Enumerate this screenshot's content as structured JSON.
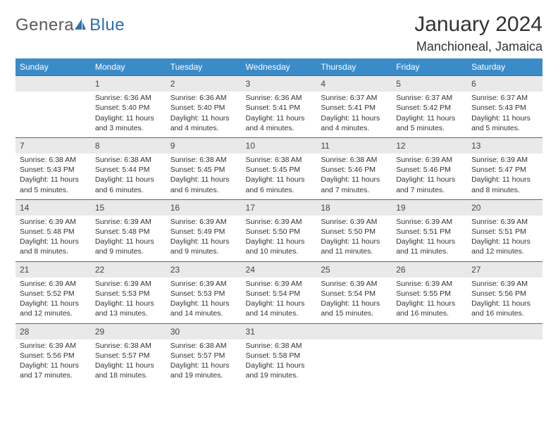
{
  "logo": {
    "textA": "Genera",
    "textB": "Blue"
  },
  "title": "January 2024",
  "location": "Manchioneal, Jamaica",
  "colors": {
    "headerBg": "#3b8bc9",
    "headerText": "#ffffff",
    "dayNumBg": "#e9e9e9",
    "rowBorder": "#2f6fb0",
    "bodyText": "#333333",
    "logoGray": "#5a5a5a",
    "logoBlue": "#2f6fb0"
  },
  "dayNames": [
    "Sunday",
    "Monday",
    "Tuesday",
    "Wednesday",
    "Thursday",
    "Friday",
    "Saturday"
  ],
  "weeks": [
    [
      null,
      {
        "n": "1",
        "sr": "Sunrise: 6:36 AM",
        "ss": "Sunset: 5:40 PM",
        "d1": "Daylight: 11 hours",
        "d2": "and 3 minutes."
      },
      {
        "n": "2",
        "sr": "Sunrise: 6:36 AM",
        "ss": "Sunset: 5:40 PM",
        "d1": "Daylight: 11 hours",
        "d2": "and 4 minutes."
      },
      {
        "n": "3",
        "sr": "Sunrise: 6:36 AM",
        "ss": "Sunset: 5:41 PM",
        "d1": "Daylight: 11 hours",
        "d2": "and 4 minutes."
      },
      {
        "n": "4",
        "sr": "Sunrise: 6:37 AM",
        "ss": "Sunset: 5:41 PM",
        "d1": "Daylight: 11 hours",
        "d2": "and 4 minutes."
      },
      {
        "n": "5",
        "sr": "Sunrise: 6:37 AM",
        "ss": "Sunset: 5:42 PM",
        "d1": "Daylight: 11 hours",
        "d2": "and 5 minutes."
      },
      {
        "n": "6",
        "sr": "Sunrise: 6:37 AM",
        "ss": "Sunset: 5:43 PM",
        "d1": "Daylight: 11 hours",
        "d2": "and 5 minutes."
      }
    ],
    [
      {
        "n": "7",
        "sr": "Sunrise: 6:38 AM",
        "ss": "Sunset: 5:43 PM",
        "d1": "Daylight: 11 hours",
        "d2": "and 5 minutes."
      },
      {
        "n": "8",
        "sr": "Sunrise: 6:38 AM",
        "ss": "Sunset: 5:44 PM",
        "d1": "Daylight: 11 hours",
        "d2": "and 6 minutes."
      },
      {
        "n": "9",
        "sr": "Sunrise: 6:38 AM",
        "ss": "Sunset: 5:45 PM",
        "d1": "Daylight: 11 hours",
        "d2": "and 6 minutes."
      },
      {
        "n": "10",
        "sr": "Sunrise: 6:38 AM",
        "ss": "Sunset: 5:45 PM",
        "d1": "Daylight: 11 hours",
        "d2": "and 6 minutes."
      },
      {
        "n": "11",
        "sr": "Sunrise: 6:38 AM",
        "ss": "Sunset: 5:46 PM",
        "d1": "Daylight: 11 hours",
        "d2": "and 7 minutes."
      },
      {
        "n": "12",
        "sr": "Sunrise: 6:39 AM",
        "ss": "Sunset: 5:46 PM",
        "d1": "Daylight: 11 hours",
        "d2": "and 7 minutes."
      },
      {
        "n": "13",
        "sr": "Sunrise: 6:39 AM",
        "ss": "Sunset: 5:47 PM",
        "d1": "Daylight: 11 hours",
        "d2": "and 8 minutes."
      }
    ],
    [
      {
        "n": "14",
        "sr": "Sunrise: 6:39 AM",
        "ss": "Sunset: 5:48 PM",
        "d1": "Daylight: 11 hours",
        "d2": "and 8 minutes."
      },
      {
        "n": "15",
        "sr": "Sunrise: 6:39 AM",
        "ss": "Sunset: 5:48 PM",
        "d1": "Daylight: 11 hours",
        "d2": "and 9 minutes."
      },
      {
        "n": "16",
        "sr": "Sunrise: 6:39 AM",
        "ss": "Sunset: 5:49 PM",
        "d1": "Daylight: 11 hours",
        "d2": "and 9 minutes."
      },
      {
        "n": "17",
        "sr": "Sunrise: 6:39 AM",
        "ss": "Sunset: 5:50 PM",
        "d1": "Daylight: 11 hours",
        "d2": "and 10 minutes."
      },
      {
        "n": "18",
        "sr": "Sunrise: 6:39 AM",
        "ss": "Sunset: 5:50 PM",
        "d1": "Daylight: 11 hours",
        "d2": "and 11 minutes."
      },
      {
        "n": "19",
        "sr": "Sunrise: 6:39 AM",
        "ss": "Sunset: 5:51 PM",
        "d1": "Daylight: 11 hours",
        "d2": "and 11 minutes."
      },
      {
        "n": "20",
        "sr": "Sunrise: 6:39 AM",
        "ss": "Sunset: 5:51 PM",
        "d1": "Daylight: 11 hours",
        "d2": "and 12 minutes."
      }
    ],
    [
      {
        "n": "21",
        "sr": "Sunrise: 6:39 AM",
        "ss": "Sunset: 5:52 PM",
        "d1": "Daylight: 11 hours",
        "d2": "and 12 minutes."
      },
      {
        "n": "22",
        "sr": "Sunrise: 6:39 AM",
        "ss": "Sunset: 5:53 PM",
        "d1": "Daylight: 11 hours",
        "d2": "and 13 minutes."
      },
      {
        "n": "23",
        "sr": "Sunrise: 6:39 AM",
        "ss": "Sunset: 5:53 PM",
        "d1": "Daylight: 11 hours",
        "d2": "and 14 minutes."
      },
      {
        "n": "24",
        "sr": "Sunrise: 6:39 AM",
        "ss": "Sunset: 5:54 PM",
        "d1": "Daylight: 11 hours",
        "d2": "and 14 minutes."
      },
      {
        "n": "25",
        "sr": "Sunrise: 6:39 AM",
        "ss": "Sunset: 5:54 PM",
        "d1": "Daylight: 11 hours",
        "d2": "and 15 minutes."
      },
      {
        "n": "26",
        "sr": "Sunrise: 6:39 AM",
        "ss": "Sunset: 5:55 PM",
        "d1": "Daylight: 11 hours",
        "d2": "and 16 minutes."
      },
      {
        "n": "27",
        "sr": "Sunrise: 6:39 AM",
        "ss": "Sunset: 5:56 PM",
        "d1": "Daylight: 11 hours",
        "d2": "and 16 minutes."
      }
    ],
    [
      {
        "n": "28",
        "sr": "Sunrise: 6:39 AM",
        "ss": "Sunset: 5:56 PM",
        "d1": "Daylight: 11 hours",
        "d2": "and 17 minutes."
      },
      {
        "n": "29",
        "sr": "Sunrise: 6:38 AM",
        "ss": "Sunset: 5:57 PM",
        "d1": "Daylight: 11 hours",
        "d2": "and 18 minutes."
      },
      {
        "n": "30",
        "sr": "Sunrise: 6:38 AM",
        "ss": "Sunset: 5:57 PM",
        "d1": "Daylight: 11 hours",
        "d2": "and 19 minutes."
      },
      {
        "n": "31",
        "sr": "Sunrise: 6:38 AM",
        "ss": "Sunset: 5:58 PM",
        "d1": "Daylight: 11 hours",
        "d2": "and 19 minutes."
      },
      null,
      null,
      null
    ]
  ]
}
